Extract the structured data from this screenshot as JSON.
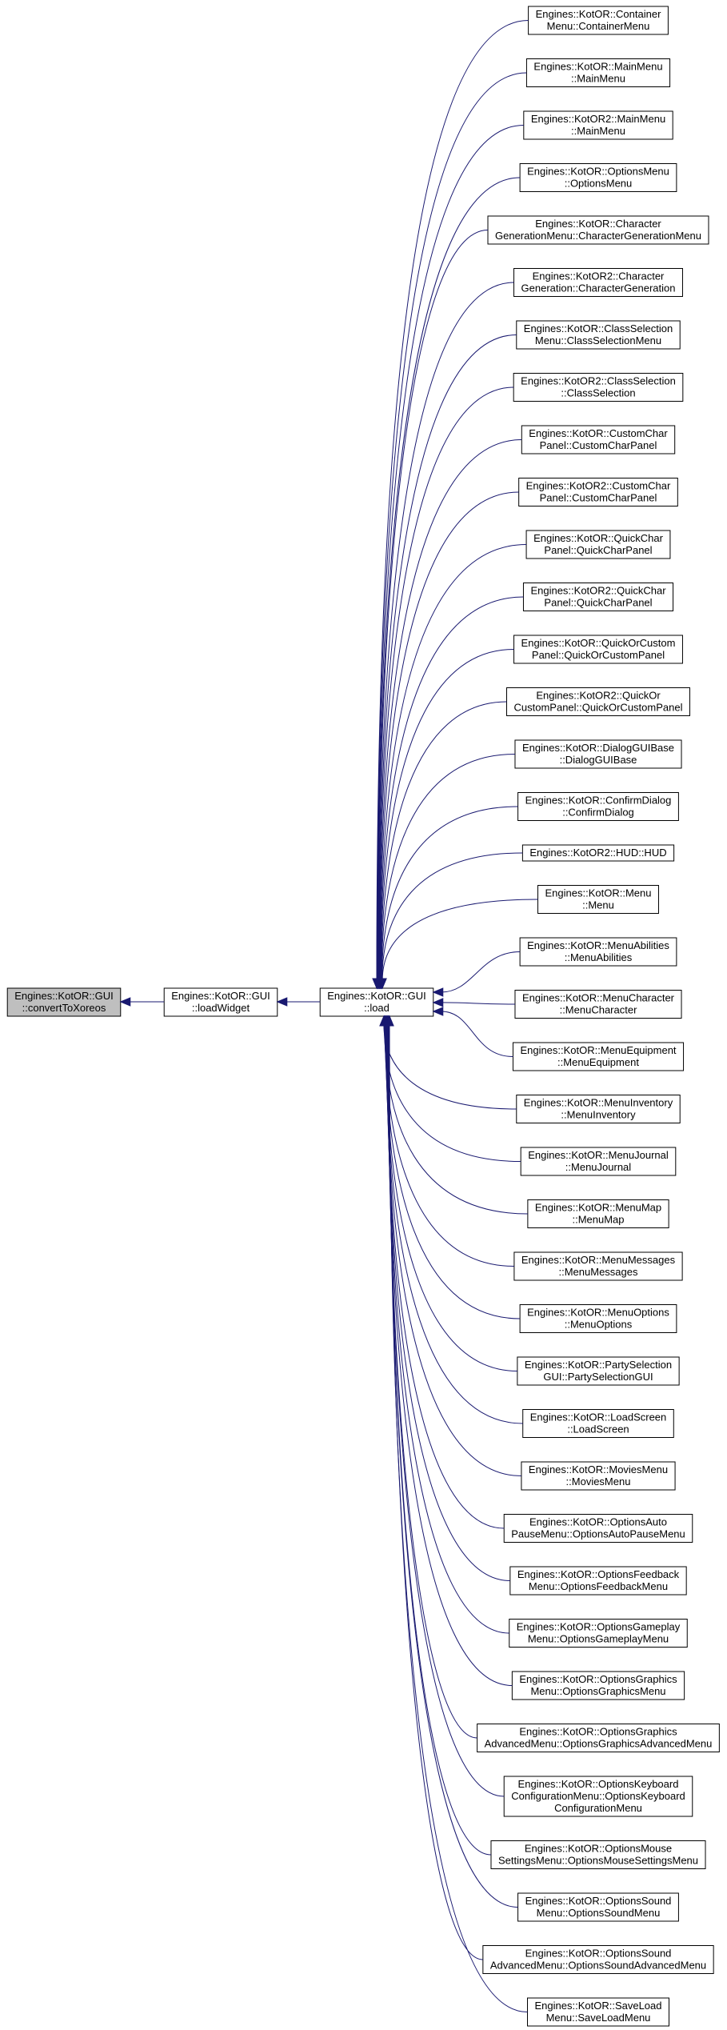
{
  "root": {
    "lines": [
      "Engines::KotOR::GUI",
      "::convertToXoreos"
    ]
  },
  "widget": {
    "lines": [
      "Engines::KotOR::GUI",
      "::loadWidget"
    ]
  },
  "load": {
    "lines": [
      "Engines::KotOR::GUI",
      "::load"
    ]
  },
  "callers": [
    {
      "lines": [
        "Engines::KotOR::Container",
        "Menu::ContainerMenu"
      ]
    },
    {
      "lines": [
        "Engines::KotOR::MainMenu",
        "::MainMenu"
      ]
    },
    {
      "lines": [
        "Engines::KotOR2::MainMenu",
        "::MainMenu"
      ]
    },
    {
      "lines": [
        "Engines::KotOR::OptionsMenu",
        "::OptionsMenu"
      ]
    },
    {
      "lines": [
        "Engines::KotOR::Character",
        "GenerationMenu::CharacterGenerationMenu"
      ]
    },
    {
      "lines": [
        "Engines::KotOR2::Character",
        "Generation::CharacterGeneration"
      ]
    },
    {
      "lines": [
        "Engines::KotOR::ClassSelection",
        "Menu::ClassSelectionMenu"
      ]
    },
    {
      "lines": [
        "Engines::KotOR2::ClassSelection",
        "::ClassSelection"
      ]
    },
    {
      "lines": [
        "Engines::KotOR::CustomChar",
        "Panel::CustomCharPanel"
      ]
    },
    {
      "lines": [
        "Engines::KotOR2::CustomChar",
        "Panel::CustomCharPanel"
      ]
    },
    {
      "lines": [
        "Engines::KotOR::QuickChar",
        "Panel::QuickCharPanel"
      ]
    },
    {
      "lines": [
        "Engines::KotOR2::QuickChar",
        "Panel::QuickCharPanel"
      ]
    },
    {
      "lines": [
        "Engines::KotOR::QuickOrCustom",
        "Panel::QuickOrCustomPanel"
      ]
    },
    {
      "lines": [
        "Engines::KotOR2::QuickOr",
        "CustomPanel::QuickOrCustomPanel"
      ]
    },
    {
      "lines": [
        "Engines::KotOR::DialogGUIBase",
        "::DialogGUIBase"
      ]
    },
    {
      "lines": [
        "Engines::KotOR::ConfirmDialog",
        "::ConfirmDialog"
      ]
    },
    {
      "lines": [
        "Engines::KotOR2::HUD::HUD"
      ]
    },
    {
      "lines": [
        "Engines::KotOR::Menu",
        "::Menu"
      ]
    },
    {
      "lines": [
        "Engines::KotOR::MenuAbilities",
        "::MenuAbilities"
      ]
    },
    {
      "lines": [
        "Engines::KotOR::MenuCharacter",
        "::MenuCharacter"
      ]
    },
    {
      "lines": [
        "Engines::KotOR::MenuEquipment",
        "::MenuEquipment"
      ]
    },
    {
      "lines": [
        "Engines::KotOR::MenuInventory",
        "::MenuInventory"
      ]
    },
    {
      "lines": [
        "Engines::KotOR::MenuJournal",
        "::MenuJournal"
      ]
    },
    {
      "lines": [
        "Engines::KotOR::MenuMap",
        "::MenuMap"
      ]
    },
    {
      "lines": [
        "Engines::KotOR::MenuMessages",
        "::MenuMessages"
      ]
    },
    {
      "lines": [
        "Engines::KotOR::MenuOptions",
        "::MenuOptions"
      ]
    },
    {
      "lines": [
        "Engines::KotOR::PartySelection",
        "GUI::PartySelectionGUI"
      ]
    },
    {
      "lines": [
        "Engines::KotOR::LoadScreen",
        "::LoadScreen"
      ]
    },
    {
      "lines": [
        "Engines::KotOR::MoviesMenu",
        "::MoviesMenu"
      ]
    },
    {
      "lines": [
        "Engines::KotOR::OptionsAuto",
        "PauseMenu::OptionsAutoPauseMenu"
      ]
    },
    {
      "lines": [
        "Engines::KotOR::OptionsFeedback",
        "Menu::OptionsFeedbackMenu"
      ]
    },
    {
      "lines": [
        "Engines::KotOR::OptionsGameplay",
        "Menu::OptionsGameplayMenu"
      ]
    },
    {
      "lines": [
        "Engines::KotOR::OptionsGraphics",
        "Menu::OptionsGraphicsMenu"
      ]
    },
    {
      "lines": [
        "Engines::KotOR::OptionsGraphics",
        "AdvancedMenu::OptionsGraphicsAdvancedMenu"
      ]
    },
    {
      "lines": [
        "Engines::KotOR::OptionsKeyboard",
        "ConfigurationMenu::OptionsKeyboard",
        "ConfigurationMenu"
      ]
    },
    {
      "lines": [
        "Engines::KotOR::OptionsMouse",
        "SettingsMenu::OptionsMouseSettingsMenu"
      ]
    },
    {
      "lines": [
        "Engines::KotOR::OptionsSound",
        "Menu::OptionsSoundMenu"
      ]
    },
    {
      "lines": [
        "Engines::KotOR::OptionsSound",
        "AdvancedMenu::OptionsSoundAdvancedMenu"
      ]
    },
    {
      "lines": [
        "Engines::KotOR::SaveLoad",
        "Menu::SaveLoadMenu"
      ]
    }
  ]
}
